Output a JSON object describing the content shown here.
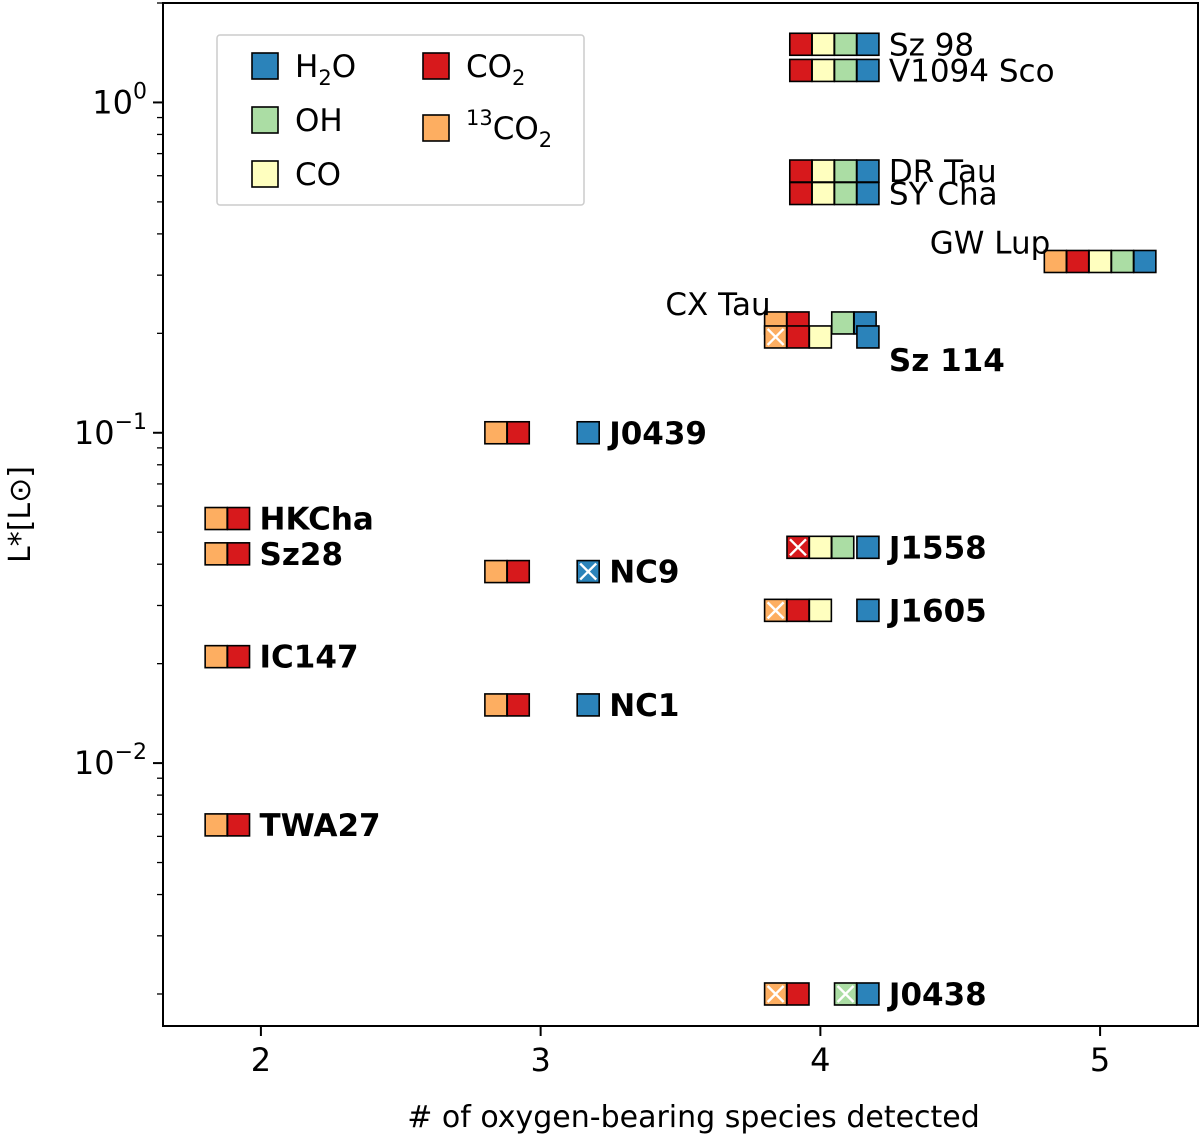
{
  "chart_data": {
    "type": "scatter",
    "title": "",
    "xlabel": "# of oxygen-bearing species detected",
    "ylabel": "L*[L⊙]",
    "yscale": "log",
    "xlim": [
      1.65,
      5.35
    ],
    "ylim": [
      0.0016,
      2.0
    ],
    "x_ticks": [
      2,
      3,
      4,
      5
    ],
    "x_tick_labels": [
      "2",
      "3",
      "4",
      "5"
    ],
    "y_ticks": [
      0.01,
      0.1,
      1.0
    ],
    "y_tick_labels": [
      {
        "base": "10",
        "exp": "−2"
      },
      {
        "base": "10",
        "exp": "−1"
      },
      {
        "base": "10",
        "exp": "0"
      }
    ],
    "colors": {
      "13CO2": "#fdae61",
      "CO2": "#d7191c",
      "CO": "#ffffbf",
      "OH": "#abdda4",
      "H2O": "#2b83ba"
    },
    "legend": {
      "location": "upper-left",
      "entries": [
        {
          "key": "H2O",
          "base": "H",
          "sub": "2",
          "tail": "O",
          "sup": ""
        },
        {
          "key": "OH",
          "base": "OH",
          "sub": "",
          "tail": "",
          "sup": ""
        },
        {
          "key": "CO",
          "base": "CO",
          "sub": "",
          "tail": "",
          "sup": ""
        },
        {
          "key": "CO2",
          "base": "CO",
          "sub": "2",
          "tail": "",
          "sup": ""
        },
        {
          "key": "13CO2",
          "base": "CO",
          "sub": "2",
          "tail": "",
          "sup": "13"
        }
      ]
    },
    "stars": [
      {
        "name": "Sz 98",
        "bold": false,
        "n": 4,
        "L": 1.5,
        "label_side": "right",
        "species": [
          {
            "s": "CO2",
            "x": 3.93
          },
          {
            "s": "CO",
            "x": 4.01
          },
          {
            "s": "OH",
            "x": 4.09
          },
          {
            "s": "H2O",
            "x": 4.17
          }
        ]
      },
      {
        "name": "V1094 Sco",
        "bold": false,
        "n": 4,
        "L": 1.25,
        "label_side": "right",
        "species": [
          {
            "s": "CO2",
            "x": 3.93
          },
          {
            "s": "CO",
            "x": 4.01
          },
          {
            "s": "OH",
            "x": 4.09
          },
          {
            "s": "H2O",
            "x": 4.17
          }
        ]
      },
      {
        "name": "DR Tau",
        "bold": false,
        "n": 4,
        "L": 0.62,
        "label_side": "right",
        "species": [
          {
            "s": "CO2",
            "x": 3.93
          },
          {
            "s": "CO",
            "x": 4.01
          },
          {
            "s": "OH",
            "x": 4.09
          },
          {
            "s": "H2O",
            "x": 4.17
          }
        ]
      },
      {
        "name": "SY Cha",
        "bold": false,
        "n": 4,
        "L": 0.53,
        "label_side": "right",
        "species": [
          {
            "s": "CO2",
            "x": 3.93
          },
          {
            "s": "CO",
            "x": 4.01
          },
          {
            "s": "OH",
            "x": 4.09
          },
          {
            "s": "H2O",
            "x": 4.17
          }
        ]
      },
      {
        "name": "GW Lup",
        "bold": false,
        "n": 5,
        "L": 0.33,
        "label_side": "left",
        "species": [
          {
            "s": "13CO2",
            "x": 4.84
          },
          {
            "s": "CO2",
            "x": 4.92
          },
          {
            "s": "CO",
            "x": 5.0
          },
          {
            "s": "OH",
            "x": 5.08
          },
          {
            "s": "H2O",
            "x": 5.16
          }
        ]
      },
      {
        "name": "CX Tau",
        "bold": false,
        "n": 4,
        "L": 0.215,
        "label_side": "left",
        "species": [
          {
            "s": "13CO2",
            "x": 3.84
          },
          {
            "s": "CO2",
            "x": 3.92
          },
          {
            "s": "OH",
            "x": 4.08
          },
          {
            "s": "H2O",
            "x": 4.16
          }
        ]
      },
      {
        "name": "Sz 114",
        "bold": true,
        "n": 4,
        "L": 0.195,
        "label_side": "right-below",
        "species": [
          {
            "s": "13CO2",
            "x": 3.84,
            "cross": true
          },
          {
            "s": "CO2",
            "x": 3.92
          },
          {
            "s": "CO",
            "x": 4.0
          },
          {
            "s": "H2O",
            "x": 4.17
          }
        ]
      },
      {
        "name": "J0439",
        "bold": true,
        "n": 3,
        "L": 0.1,
        "label_side": "right",
        "species": [
          {
            "s": "13CO2",
            "x": 2.84
          },
          {
            "s": "CO2",
            "x": 2.92
          },
          {
            "s": "H2O",
            "x": 3.17
          }
        ]
      },
      {
        "name": "HKCha",
        "bold": true,
        "n": 2,
        "L": 0.055,
        "label_side": "right",
        "species": [
          {
            "s": "13CO2",
            "x": 1.84
          },
          {
            "s": "CO2",
            "x": 1.92
          }
        ]
      },
      {
        "name": "Sz28",
        "bold": true,
        "n": 2,
        "L": 0.043,
        "label_side": "right",
        "species": [
          {
            "s": "13CO2",
            "x": 1.84
          },
          {
            "s": "CO2",
            "x": 1.92
          }
        ]
      },
      {
        "name": "NC9",
        "bold": true,
        "n": 3,
        "L": 0.038,
        "label_side": "right",
        "species": [
          {
            "s": "13CO2",
            "x": 2.84
          },
          {
            "s": "CO2",
            "x": 2.92
          },
          {
            "s": "H2O",
            "x": 3.17,
            "cross": true
          }
        ]
      },
      {
        "name": "J1558",
        "bold": true,
        "n": 4,
        "L": 0.045,
        "label_side": "right",
        "species": [
          {
            "s": "CO2",
            "x": 3.92,
            "cross": true
          },
          {
            "s": "CO",
            "x": 4.0
          },
          {
            "s": "OH",
            "x": 4.08
          },
          {
            "s": "H2O",
            "x": 4.17
          }
        ]
      },
      {
        "name": "J1605",
        "bold": true,
        "n": 4,
        "L": 0.029,
        "label_side": "right",
        "species": [
          {
            "s": "13CO2",
            "x": 3.84,
            "cross": true
          },
          {
            "s": "CO2",
            "x": 3.92
          },
          {
            "s": "CO",
            "x": 4.0
          },
          {
            "s": "H2O",
            "x": 4.17
          }
        ]
      },
      {
        "name": "IC147",
        "bold": true,
        "n": 2,
        "L": 0.021,
        "label_side": "right",
        "species": [
          {
            "s": "13CO2",
            "x": 1.84
          },
          {
            "s": "CO2",
            "x": 1.92
          }
        ]
      },
      {
        "name": "NC1",
        "bold": true,
        "n": 3,
        "L": 0.015,
        "label_side": "right",
        "species": [
          {
            "s": "13CO2",
            "x": 2.84
          },
          {
            "s": "CO2",
            "x": 2.92
          },
          {
            "s": "H2O",
            "x": 3.17
          }
        ]
      },
      {
        "name": "TWA27",
        "bold": true,
        "n": 2,
        "L": 0.0065,
        "label_side": "right",
        "species": [
          {
            "s": "13CO2",
            "x": 1.84
          },
          {
            "s": "CO2",
            "x": 1.92
          }
        ]
      },
      {
        "name": "J0438",
        "bold": true,
        "n": 4,
        "L": 0.002,
        "label_side": "right",
        "species": [
          {
            "s": "13CO2",
            "x": 3.84,
            "cross": true
          },
          {
            "s": "CO2",
            "x": 3.92
          },
          {
            "s": "OH",
            "x": 4.09,
            "cross": true
          },
          {
            "s": "H2O",
            "x": 4.17
          }
        ]
      }
    ]
  }
}
